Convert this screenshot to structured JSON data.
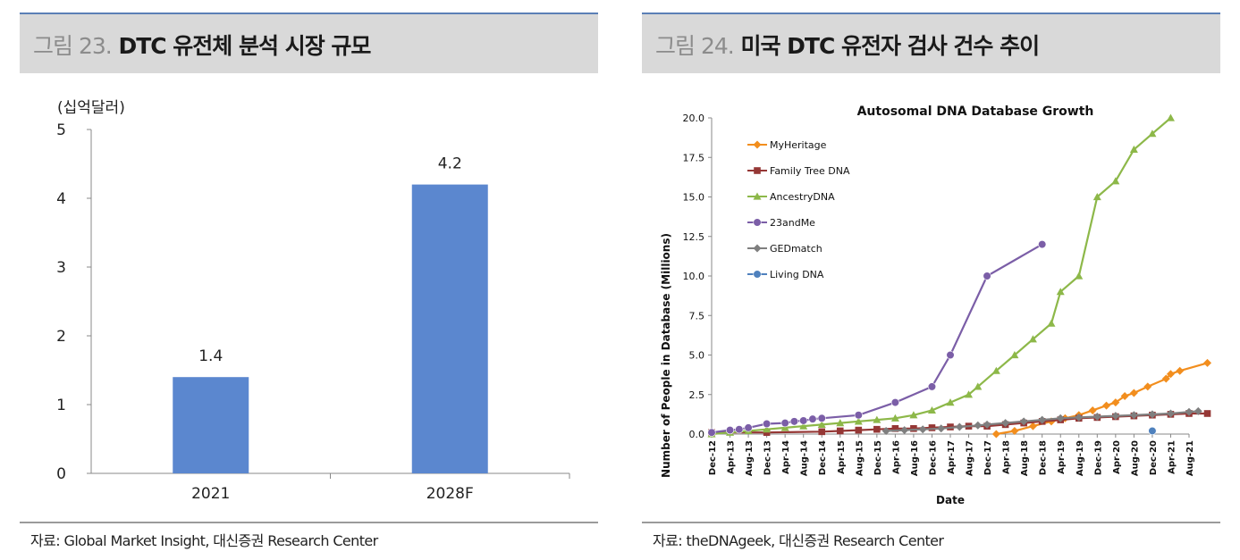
{
  "left": {
    "figure_number": "그림 23.",
    "title": "DTC 유전체 분석 시장 규모",
    "unit": "(십억달러)",
    "source": "자료: Global Market Insight, 대신증권 Research Center",
    "colors": {
      "bar": "#5b87cf"
    },
    "chart_data": {
      "type": "bar",
      "title": "",
      "categories": [
        "2021",
        "2028F"
      ],
      "values": [
        1.4,
        4.2
      ],
      "data_labels": [
        "1.4",
        "4.2"
      ],
      "ylim": [
        0,
        5
      ],
      "yticks": [
        "0",
        "1",
        "2",
        "3",
        "4",
        "5"
      ],
      "ylabel": "(십억달러)",
      "grid": false
    }
  },
  "right": {
    "figure_number": "그림 24.",
    "title": "미국 DTC 유전자 검사 건수 추이",
    "source": "자료: theDNAgeek, 대신증권 Research Center",
    "chart_data": {
      "type": "line",
      "title": "Autosomal DNA Database Growth",
      "xlabel": "Date",
      "ylabel": "Number of People in Database (Millions)",
      "ylim": [
        0,
        20
      ],
      "yticks": [
        "0.0",
        "2.5",
        "5.0",
        "7.5",
        "10.0",
        "12.5",
        "15.0",
        "17.5",
        "20.0"
      ],
      "xticks": [
        "Dec-12",
        "Apr-13",
        "Aug-13",
        "Dec-13",
        "Apr-14",
        "Aug-14",
        "Dec-14",
        "Apr-15",
        "Aug-15",
        "Dec-15",
        "Apr-16",
        "Aug-16",
        "Dec-16",
        "Apr-17",
        "Aug-17",
        "Dec-17",
        "Apr-18",
        "Aug-18",
        "Dec-18",
        "Apr-19",
        "Aug-19",
        "Dec-19",
        "Apr-20",
        "Aug-20",
        "Dec-20",
        "Apr-21",
        "Aug-21"
      ],
      "x_unit": "months since Dec-12",
      "xlim": [
        0,
        104
      ],
      "legend_position": "top-left",
      "grid": false,
      "series": [
        {
          "name": "MyHeritage",
          "color": "#f28e1e",
          "marker": "diamond",
          "points": [
            [
              62,
              0
            ],
            [
              66,
              0.2
            ],
            [
              70,
              0.5
            ],
            [
              74,
              0.8
            ],
            [
              77,
              1.0
            ],
            [
              80,
              1.2
            ],
            [
              83,
              1.5
            ],
            [
              86,
              1.8
            ],
            [
              88,
              2.0
            ],
            [
              90,
              2.4
            ],
            [
              92,
              2.6
            ],
            [
              95,
              3.0
            ],
            [
              99,
              3.5
            ],
            [
              100,
              3.8
            ],
            [
              102,
              4.0
            ],
            [
              108,
              4.5
            ]
          ]
        },
        {
          "name": "Family Tree DNA",
          "color": "#953735",
          "marker": "square",
          "points": [
            [
              0,
              0.1
            ],
            [
              12,
              0.1
            ],
            [
              24,
              0.15
            ],
            [
              28,
              0.2
            ],
            [
              32,
              0.25
            ],
            [
              36,
              0.3
            ],
            [
              40,
              0.35
            ],
            [
              44,
              0.35
            ],
            [
              48,
              0.4
            ],
            [
              52,
              0.45
            ],
            [
              56,
              0.5
            ],
            [
              60,
              0.5
            ],
            [
              64,
              0.6
            ],
            [
              68,
              0.7
            ],
            [
              72,
              0.8
            ],
            [
              76,
              0.9
            ],
            [
              80,
              1.0
            ],
            [
              84,
              1.05
            ],
            [
              88,
              1.1
            ],
            [
              92,
              1.15
            ],
            [
              96,
              1.2
            ],
            [
              100,
              1.25
            ],
            [
              104,
              1.3
            ],
            [
              108,
              1.3
            ]
          ]
        },
        {
          "name": "AncestryDNA",
          "color": "#8db849",
          "marker": "triangle",
          "points": [
            [
              0,
              0
            ],
            [
              4,
              0.1
            ],
            [
              8,
              0.2
            ],
            [
              12,
              0.3
            ],
            [
              16,
              0.4
            ],
            [
              20,
              0.5
            ],
            [
              24,
              0.6
            ],
            [
              28,
              0.7
            ],
            [
              32,
              0.8
            ],
            [
              36,
              0.9
            ],
            [
              40,
              1.0
            ],
            [
              44,
              1.2
            ],
            [
              48,
              1.5
            ],
            [
              52,
              2.0
            ],
            [
              56,
              2.5
            ],
            [
              58,
              3.0
            ],
            [
              62,
              4.0
            ],
            [
              66,
              5.0
            ],
            [
              70,
              6.0
            ],
            [
              74,
              7.0
            ],
            [
              76,
              9.0
            ],
            [
              80,
              10.0
            ],
            [
              84,
              15.0
            ],
            [
              88,
              16.0
            ],
            [
              92,
              18.0
            ],
            [
              96,
              19.0
            ],
            [
              100,
              20.0
            ]
          ]
        },
        {
          "name": "23andMe",
          "color": "#7b5ea7",
          "marker": "circle",
          "points": [
            [
              0,
              0.1
            ],
            [
              4,
              0.25
            ],
            [
              6,
              0.3
            ],
            [
              8,
              0.4
            ],
            [
              12,
              0.65
            ],
            [
              16,
              0.7
            ],
            [
              18,
              0.8
            ],
            [
              20,
              0.85
            ],
            [
              22,
              0.95
            ],
            [
              24,
              1.0
            ],
            [
              32,
              1.2
            ],
            [
              40,
              2.0
            ],
            [
              48,
              3.0
            ],
            [
              52,
              5.0
            ],
            [
              60,
              10.0
            ],
            [
              72,
              12.0
            ]
          ]
        },
        {
          "name": "GEDmatch",
          "color": "#7f7f7f",
          "marker": "diamond",
          "points": [
            [
              38,
              0.2
            ],
            [
              42,
              0.25
            ],
            [
              46,
              0.3
            ],
            [
              50,
              0.35
            ],
            [
              54,
              0.45
            ],
            [
              58,
              0.55
            ],
            [
              60,
              0.6
            ],
            [
              64,
              0.7
            ],
            [
              68,
              0.8
            ],
            [
              72,
              0.9
            ],
            [
              76,
              1.0
            ],
            [
              80,
              1.05
            ],
            [
              84,
              1.1
            ],
            [
              88,
              1.15
            ],
            [
              92,
              1.2
            ],
            [
              96,
              1.25
            ],
            [
              100,
              1.3
            ],
            [
              104,
              1.4
            ],
            [
              106,
              1.45
            ]
          ]
        },
        {
          "name": "Living DNA",
          "color": "#4f81bd",
          "marker": "circle",
          "points": [
            [
              96,
              0.2
            ]
          ]
        }
      ]
    }
  }
}
